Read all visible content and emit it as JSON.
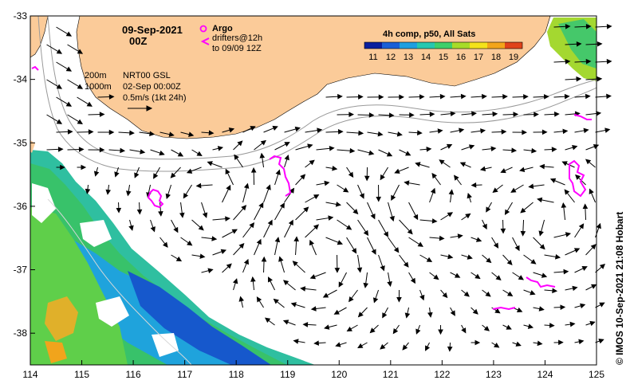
{
  "map": {
    "date": "09-Sep-2021",
    "hour": "00Z",
    "lon_ticks": [
      "114",
      "115",
      "116",
      "117",
      "118",
      "119",
      "120",
      "121",
      "122",
      "123",
      "124",
      "125"
    ],
    "lat_ticks": [
      "-33",
      "-34",
      "-35",
      "-36",
      "-37",
      "-38"
    ],
    "lon_range": [
      114,
      125
    ],
    "lat_range": [
      -38.5,
      -33
    ]
  },
  "legend": {
    "argo_label": "Argo",
    "drifters_label": "drifters@12h",
    "drifters_to": "to 09/09 12Z",
    "argo_color": "#ff00ff",
    "drifter_color": "#ff00ff"
  },
  "annotations": {
    "isobath_1": "200m",
    "isobath_2": "1000m",
    "product": "NRT00 GSL",
    "product_date": "02-Sep 00:00Z",
    "scale_label": "0.5m/s (1kt 24h)"
  },
  "colorbar": {
    "title": "4h comp, p50, All Sats",
    "labels": [
      "11",
      "12",
      "13",
      "14",
      "15",
      "16",
      "17",
      "18",
      "19"
    ],
    "colors": [
      "#0a1f9e",
      "#1a5fd6",
      "#1f9fe0",
      "#27c8b0",
      "#3ed06a",
      "#a7dc28",
      "#f4e21a",
      "#f3a51a",
      "#e0431a"
    ]
  },
  "credit": "© IMOS 10-Sep-2021 21:08 Hobart",
  "colors": {
    "land": "#fbcb99",
    "ocean": "#ffffff",
    "contour": "#9a9a9a",
    "arrow": "#000000"
  }
}
